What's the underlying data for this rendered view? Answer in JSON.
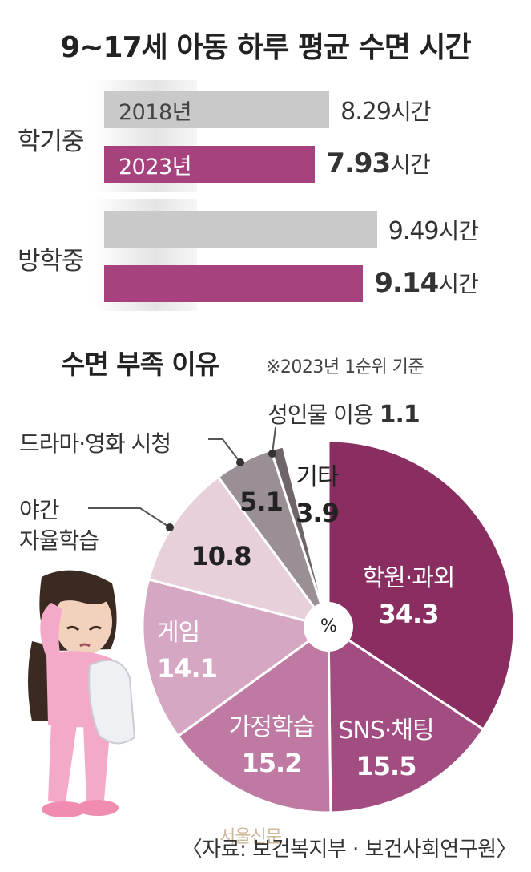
{
  "title": "9~17세 아동 하루 평균 수면 시간",
  "colors": {
    "year_2018": "#c9c9c9",
    "year_2023": "#a6437f",
    "pie_slices": [
      "#8a2e61",
      "#a24d82",
      "#bf7aa3",
      "#d6a7c2",
      "#e7cfdc",
      "#9a8f97",
      "#6e6469",
      "#ffffff"
    ]
  },
  "chart_data": [
    {
      "type": "bar",
      "orientation": "horizontal",
      "categories": [
        "학기중",
        "방학중"
      ],
      "series": [
        {
          "name": "2018년",
          "values": [
            8.29,
            9.49
          ]
        },
        {
          "name": "2023년",
          "values": [
            7.93,
            9.14
          ]
        }
      ],
      "value_labels": {
        "unit": "시간",
        "학기중": [
          {
            "value": "8.29",
            "unit": "시간"
          },
          {
            "value": "7.93",
            "unit": "시간"
          }
        ],
        "방학중": [
          {
            "value": "9.49",
            "unit": "시간"
          },
          {
            "value": "9.14",
            "unit": "시간"
          }
        ]
      },
      "xlim": [
        0,
        10
      ]
    },
    {
      "type": "pie",
      "title": "수면 부족 이유",
      "subtitle": "※2023년 1순위 기준",
      "center_label": "%",
      "slices": [
        {
          "label": "학원·과외",
          "value": 34.3
        },
        {
          "label": "SNS·채팅",
          "value": 15.5
        },
        {
          "label": "가정학습",
          "value": 15.2
        },
        {
          "label": "게임",
          "value": 14.1
        },
        {
          "label_lines": [
            "야간",
            "자율학습"
          ],
          "value": 10.8
        },
        {
          "label": "드라마·영화 시청",
          "value": 5.1
        },
        {
          "label": "성인물 이용",
          "value": 1.1
        },
        {
          "label": "기타",
          "value": 3.9
        }
      ]
    }
  ],
  "display": {
    "semester_label": "학기중",
    "vacation_label": "방학중",
    "year_2018": "2018년",
    "year_2023": "2023년",
    "v_sem_2018": "8.29",
    "v_sem_2023": "7.93",
    "v_vac_2018": "9.49",
    "v_vac_2023": "9.14",
    "unit": "시간",
    "pie_title": "수면 부족 이유",
    "pie_note": "※2023년 1순위 기준",
    "pie_center": "%",
    "s_hakwon": "학원·과외",
    "v_hakwon": "34.3",
    "s_sns": "SNS·채팅",
    "v_sns": "15.5",
    "s_home": "가정학습",
    "v_home": "15.2",
    "s_game": "게임",
    "v_game": "14.1",
    "s_night_1": "야간",
    "s_night_2": "자율학습",
    "v_night": "10.8",
    "s_drama": "드라마·영화 시청",
    "v_drama": "5.1",
    "s_adult": "성인물 이용",
    "v_adult": "1.1",
    "s_etc": "기타",
    "v_etc": "3.9"
  },
  "source": "〈자료: 보건복지부 · 보건사회연구원〉",
  "watermark": "서울신문"
}
